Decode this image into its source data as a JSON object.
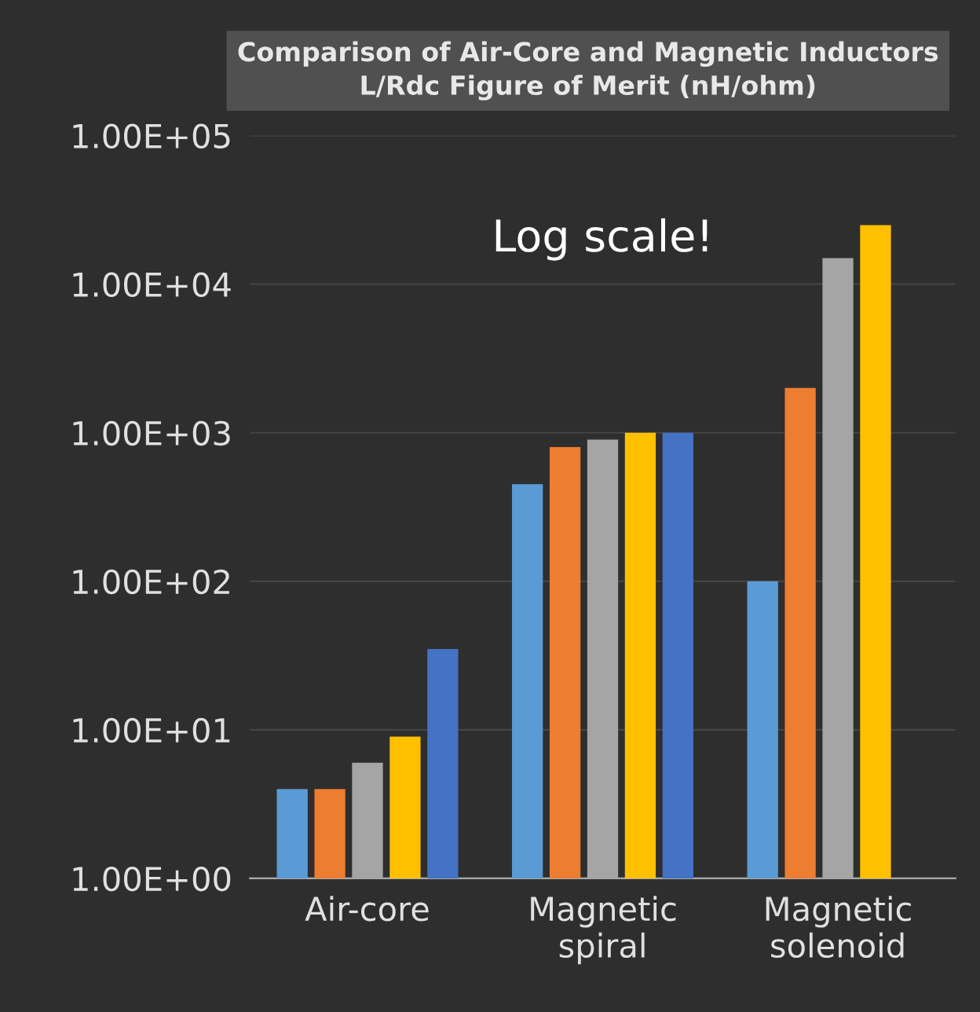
{
  "chart_data": {
    "type": "bar",
    "title": "Comparison of Air-Core and Magnetic Inductors\nL/Rdc Figure of Merit (nH/ohm)",
    "categories": [
      "Air-core",
      "Magnetic\nspiral",
      "Magnetic\nsolenoid"
    ],
    "series": [
      {
        "color": "#5b9bd5",
        "values": [
          4,
          450,
          100
        ]
      },
      {
        "color": "#ed7d31",
        "values": [
          4,
          800,
          2000
        ]
      },
      {
        "color": "#a5a5a5",
        "values": [
          6,
          900,
          15000
        ]
      },
      {
        "color": "#ffc000",
        "values": [
          9,
          1000,
          25000
        ]
      },
      {
        "color": "#4472c4",
        "values": [
          35,
          1000,
          null
        ]
      }
    ],
    "log": "y",
    "ylim": [
      1,
      100000
    ],
    "yticks": [
      {
        "value": 1,
        "label": "1.00E+00"
      },
      {
        "value": 10,
        "label": "1.00E+01"
      },
      {
        "value": 100,
        "label": "1.00E+02"
      },
      {
        "value": 1000,
        "label": "1.00E+03"
      },
      {
        "value": 10000,
        "label": "1.00E+04"
      },
      {
        "value": 100000,
        "label": "1.00E+05"
      }
    ],
    "grid": "y",
    "legend": false,
    "annotations": [
      "Log scale!"
    ]
  }
}
